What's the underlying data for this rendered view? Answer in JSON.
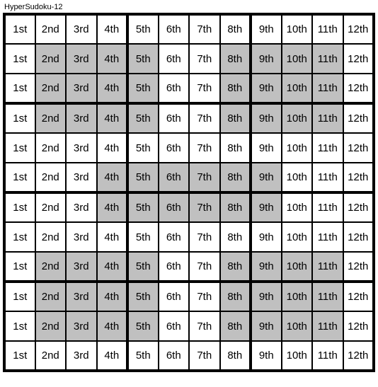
{
  "title": "HyperSudoku-12",
  "grid_size": {
    "rows": 12,
    "cols": 12
  },
  "column_labels": [
    "1st",
    "2nd",
    "3rd",
    "4th",
    "5th",
    "6th",
    "7th",
    "8th",
    "9th",
    "10th",
    "11th",
    "12th"
  ],
  "block_rows": 3,
  "block_cols": 4,
  "colors": {
    "normal_bg": "#ffffff",
    "shaded_bg": "#c0c0c0",
    "border": "#000000"
  },
  "font_size_cell": 15,
  "font_size_title": 11,
  "shaded_cells": [
    [
      1,
      1
    ],
    [
      1,
      2
    ],
    [
      1,
      3
    ],
    [
      1,
      4
    ],
    [
      1,
      7
    ],
    [
      1,
      8
    ],
    [
      1,
      9
    ],
    [
      1,
      10
    ],
    [
      2,
      1
    ],
    [
      2,
      2
    ],
    [
      2,
      3
    ],
    [
      2,
      4
    ],
    [
      2,
      7
    ],
    [
      2,
      8
    ],
    [
      2,
      9
    ],
    [
      2,
      10
    ],
    [
      3,
      1
    ],
    [
      3,
      2
    ],
    [
      3,
      3
    ],
    [
      3,
      4
    ],
    [
      3,
      7
    ],
    [
      3,
      8
    ],
    [
      3,
      9
    ],
    [
      3,
      10
    ],
    [
      5,
      3
    ],
    [
      5,
      4
    ],
    [
      5,
      5
    ],
    [
      5,
      6
    ],
    [
      5,
      7
    ],
    [
      5,
      8
    ],
    [
      6,
      3
    ],
    [
      6,
      4
    ],
    [
      6,
      5
    ],
    [
      6,
      6
    ],
    [
      6,
      7
    ],
    [
      6,
      8
    ],
    [
      8,
      1
    ],
    [
      8,
      2
    ],
    [
      8,
      3
    ],
    [
      8,
      4
    ],
    [
      8,
      7
    ],
    [
      8,
      8
    ],
    [
      8,
      9
    ],
    [
      8,
      10
    ],
    [
      9,
      1
    ],
    [
      9,
      2
    ],
    [
      9,
      3
    ],
    [
      9,
      4
    ],
    [
      9,
      7
    ],
    [
      9,
      8
    ],
    [
      9,
      9
    ],
    [
      9,
      10
    ],
    [
      10,
      1
    ],
    [
      10,
      2
    ],
    [
      10,
      3
    ],
    [
      10,
      4
    ],
    [
      10,
      7
    ],
    [
      10,
      8
    ],
    [
      10,
      9
    ],
    [
      10,
      10
    ]
  ]
}
